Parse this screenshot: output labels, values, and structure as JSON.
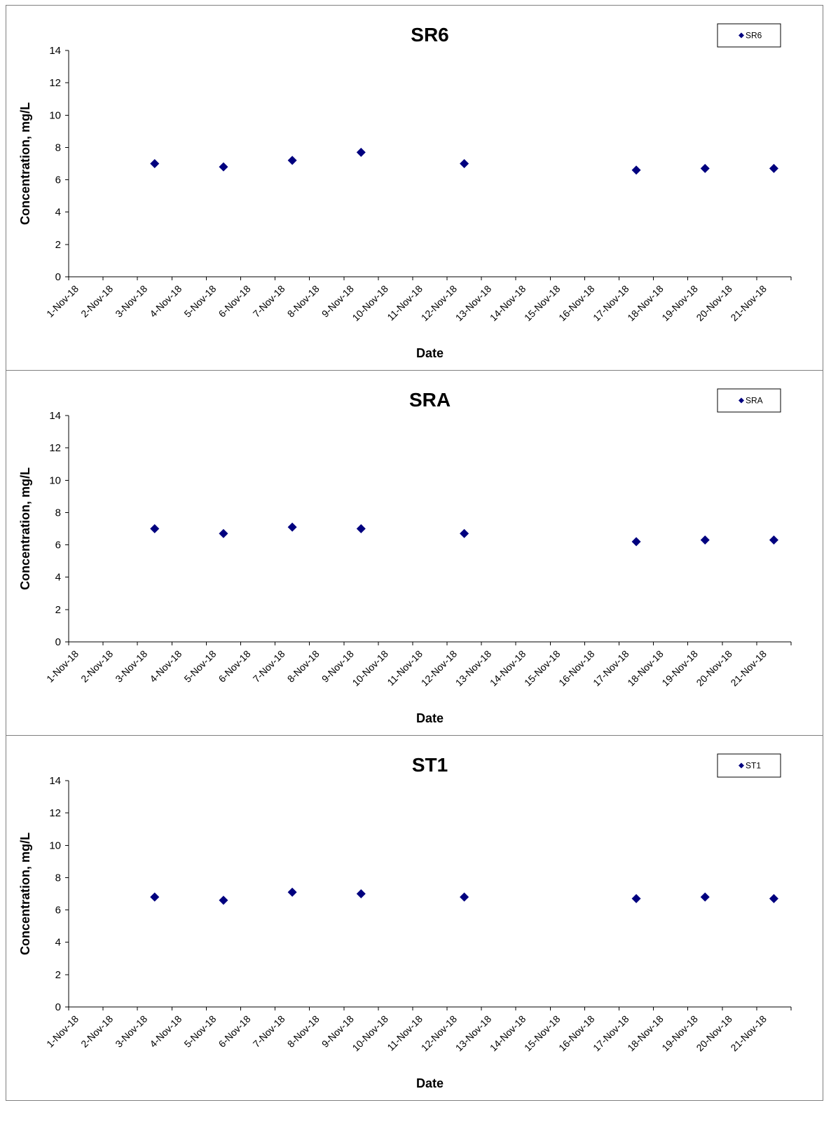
{
  "colors": {
    "marker": "#00007f",
    "axis": "#000000",
    "border": "#7f7f7f"
  },
  "chart_data": [
    {
      "type": "scatter",
      "title": "SR6",
      "xlabel": "Date",
      "ylabel": "Concentration, mg/L",
      "ylim": [
        0,
        14
      ],
      "yticks": [
        0,
        2,
        4,
        6,
        8,
        10,
        12,
        14
      ],
      "xticks": [
        "1-Nov-18",
        "2-Nov-18",
        "3-Nov-18",
        "4-Nov-18",
        "5-Nov-18",
        "6-Nov-18",
        "7-Nov-18",
        "8-Nov-18",
        "9-Nov-18",
        "10-Nov-18",
        "11-Nov-18",
        "12-Nov-18",
        "13-Nov-18",
        "14-Nov-18",
        "15-Nov-18",
        "16-Nov-18",
        "17-Nov-18",
        "18-Nov-18",
        "19-Nov-18",
        "20-Nov-18",
        "21-Nov-18"
      ],
      "grid": false,
      "legend_position": "top-right",
      "series": [
        {
          "name": "SR6",
          "marker": "diamond",
          "x": [
            "3-Nov-18",
            "5-Nov-18",
            "7-Nov-18",
            "9-Nov-18",
            "12-Nov-18",
            "17-Nov-18",
            "19-Nov-18",
            "21-Nov-18"
          ],
          "y": [
            7.0,
            6.8,
            7.2,
            7.7,
            7.0,
            6.6,
            6.7,
            6.7
          ]
        }
      ]
    },
    {
      "type": "scatter",
      "title": "SRA",
      "xlabel": "Date",
      "ylabel": "Concentration, mg/L",
      "ylim": [
        0,
        14
      ],
      "yticks": [
        0,
        2,
        4,
        6,
        8,
        10,
        12,
        14
      ],
      "xticks": [
        "1-Nov-18",
        "2-Nov-18",
        "3-Nov-18",
        "4-Nov-18",
        "5-Nov-18",
        "6-Nov-18",
        "7-Nov-18",
        "8-Nov-18",
        "9-Nov-18",
        "10-Nov-18",
        "11-Nov-18",
        "12-Nov-18",
        "13-Nov-18",
        "14-Nov-18",
        "15-Nov-18",
        "16-Nov-18",
        "17-Nov-18",
        "18-Nov-18",
        "19-Nov-18",
        "20-Nov-18",
        "21-Nov-18"
      ],
      "grid": false,
      "legend_position": "top-right",
      "series": [
        {
          "name": "SRA",
          "marker": "diamond",
          "x": [
            "3-Nov-18",
            "5-Nov-18",
            "7-Nov-18",
            "9-Nov-18",
            "12-Nov-18",
            "17-Nov-18",
            "19-Nov-18",
            "21-Nov-18"
          ],
          "y": [
            7.0,
            6.7,
            7.1,
            7.0,
            6.7,
            6.2,
            6.3,
            6.3
          ]
        }
      ]
    },
    {
      "type": "scatter",
      "title": "ST1",
      "xlabel": "Date",
      "ylabel": "Concentration, mg/L",
      "ylim": [
        0,
        14
      ],
      "yticks": [
        0,
        2,
        4,
        6,
        8,
        10,
        12,
        14
      ],
      "xticks": [
        "1-Nov-18",
        "2-Nov-18",
        "3-Nov-18",
        "4-Nov-18",
        "5-Nov-18",
        "6-Nov-18",
        "7-Nov-18",
        "8-Nov-18",
        "9-Nov-18",
        "10-Nov-18",
        "11-Nov-18",
        "12-Nov-18",
        "13-Nov-18",
        "14-Nov-18",
        "15-Nov-18",
        "16-Nov-18",
        "17-Nov-18",
        "18-Nov-18",
        "19-Nov-18",
        "20-Nov-18",
        "21-Nov-18"
      ],
      "grid": false,
      "legend_position": "top-right",
      "series": [
        {
          "name": "ST1",
          "marker": "diamond",
          "x": [
            "3-Nov-18",
            "5-Nov-18",
            "7-Nov-18",
            "9-Nov-18",
            "12-Nov-18",
            "17-Nov-18",
            "19-Nov-18",
            "21-Nov-18"
          ],
          "y": [
            6.8,
            6.6,
            7.1,
            7.0,
            6.8,
            6.7,
            6.8,
            6.7
          ]
        }
      ]
    }
  ]
}
